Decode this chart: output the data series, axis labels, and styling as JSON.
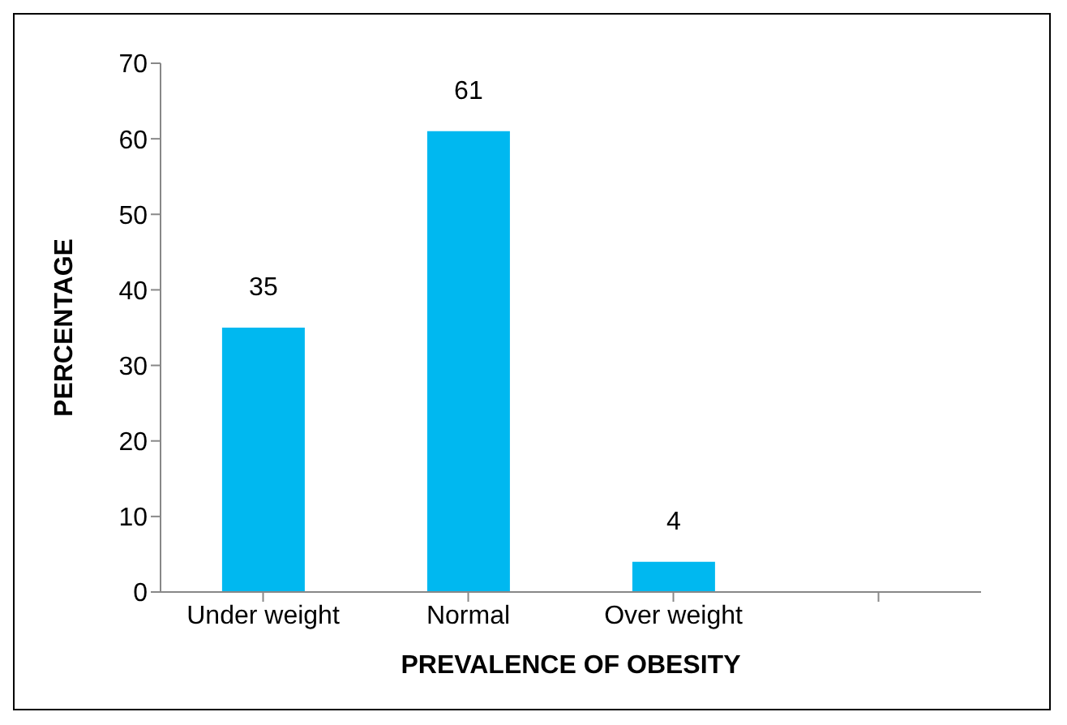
{
  "chart_data": {
    "type": "bar",
    "xlabel": "PREVALENCE OF OBESITY",
    "ylabel": "PERCENTAGE",
    "categories": [
      "Under weight",
      "Normal",
      "Over weight",
      null
    ],
    "values": [
      35,
      61,
      4,
      null
    ],
    "color": "#00b8f0",
    "ylim": [
      0,
      70
    ],
    "yticks": [
      0,
      10,
      20,
      30,
      40,
      50,
      60,
      70
    ],
    "data_labels": true
  }
}
